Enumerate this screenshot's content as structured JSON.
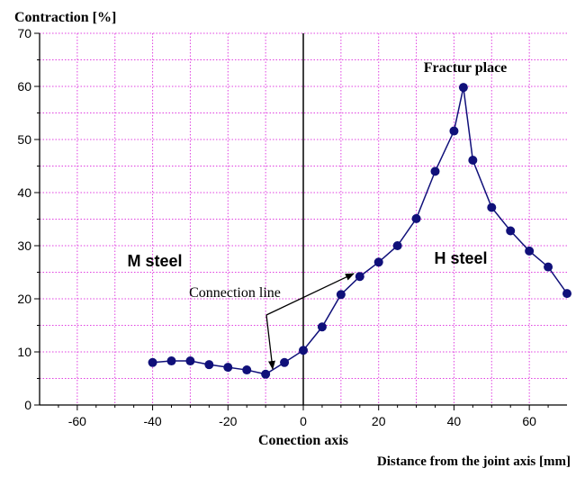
{
  "chart_data": {
    "type": "line",
    "ylabel": "Contraction [%]",
    "xlabel": "Distance from the joint axis [mm]",
    "xlim": [
      -70,
      70
    ],
    "ylim": [
      0,
      70
    ],
    "x_ticks": [
      -60,
      -40,
      -20,
      0,
      20,
      40,
      60
    ],
    "y_ticks": [
      0,
      10,
      20,
      30,
      40,
      50,
      60,
      70
    ],
    "grid": true,
    "series": [
      {
        "x": [
          -40,
          -35,
          -30,
          -25,
          -20,
          -15,
          -10,
          -5,
          0,
          5,
          10,
          15,
          20,
          25,
          30,
          35,
          40,
          42.5,
          45,
          50,
          55,
          60,
          65,
          70
        ],
        "y": [
          8.0,
          8.3,
          8.3,
          7.6,
          7.1,
          6.6,
          5.8,
          8.0,
          10.3,
          14.7,
          20.8,
          24.2,
          26.9,
          30.0,
          35.1,
          44.0,
          51.6,
          59.8,
          46.1,
          37.2,
          32.8,
          29.0,
          26.0,
          21.0
        ]
      }
    ],
    "annotations": {
      "fracture": "Fractur place",
      "m_steel": "M steel",
      "h_steel": "H steel",
      "connection_line": "Connection line",
      "connection_axis": "Conection axis"
    },
    "colors": {
      "series": "#10107a",
      "grid": "#e040e0",
      "axis": "#000000"
    }
  }
}
